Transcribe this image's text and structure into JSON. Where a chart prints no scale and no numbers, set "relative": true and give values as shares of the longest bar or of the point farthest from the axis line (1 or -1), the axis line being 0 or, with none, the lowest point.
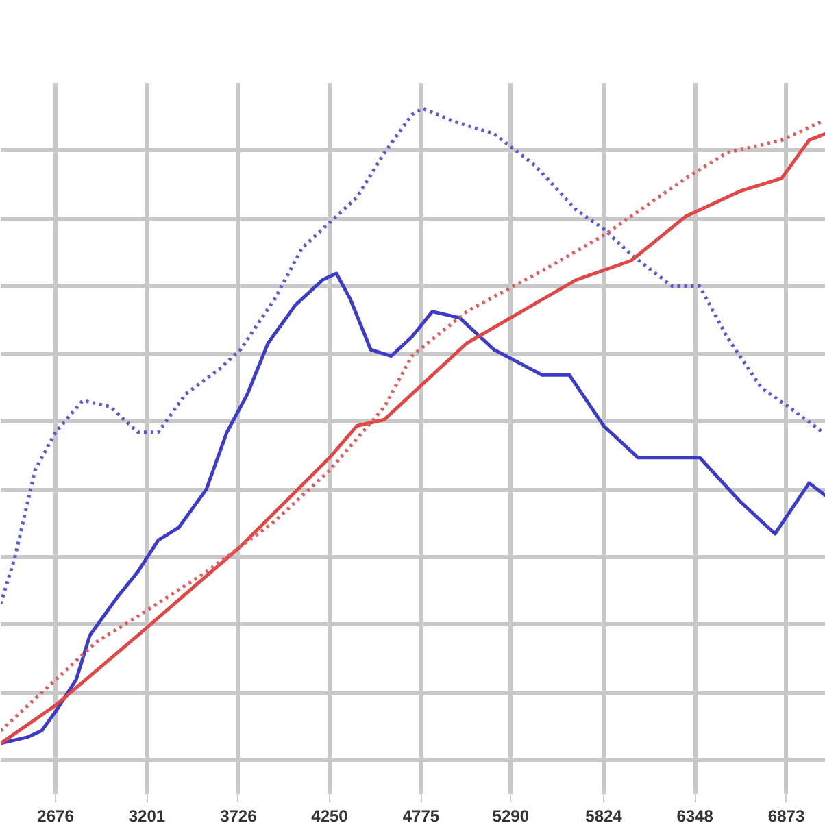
{
  "chart_data": {
    "type": "line",
    "relative": true,
    "grid": true,
    "xlim": [
      2361,
      7099
    ],
    "xticks": [
      2676,
      3201,
      3726,
      4250,
      4775,
      5290,
      5824,
      6348,
      6873
    ],
    "series": [
      {
        "color": "#5a5ad0",
        "line_style": "dotted",
        "x": [
          2361,
          2440,
          2558,
          2676,
          2833,
          2991,
          3148,
          3266,
          3423,
          3620,
          3738,
          3935,
          4092,
          4250,
          4407,
          4565,
          4722,
          4785,
          4958,
          5194,
          5430,
          5666,
          5824,
          5981,
          6217,
          6375,
          6532,
          6729,
          6886,
          7083
        ],
        "values": [
          0.22,
          0.29,
          0.43,
          0.49,
          0.54,
          0.53,
          0.49,
          0.49,
          0.55,
          0.59,
          0.62,
          0.7,
          0.78,
          0.82,
          0.86,
          0.93,
          0.99,
          1.0,
          0.98,
          0.96,
          0.91,
          0.84,
          0.81,
          0.77,
          0.72,
          0.72,
          0.64,
          0.56,
          0.53,
          0.49
        ]
      },
      {
        "color": "#3c3cc8",
        "line_style": "solid",
        "x": [
          2361,
          2518,
          2597,
          2676,
          2794,
          2873,
          3030,
          3148,
          3266,
          3384,
          3542,
          3660,
          3778,
          3896,
          4053,
          4210,
          4289,
          4368,
          4486,
          4604,
          4722,
          4840,
          4997,
          5194,
          5470,
          5627,
          5824,
          6021,
          6217,
          6375,
          6611,
          6808,
          7004,
          7099
        ],
        "values": [
          0.0,
          0.01,
          0.02,
          0.05,
          0.1,
          0.17,
          0.23,
          0.27,
          0.32,
          0.34,
          0.4,
          0.49,
          0.55,
          0.63,
          0.69,
          0.73,
          0.74,
          0.7,
          0.62,
          0.61,
          0.64,
          0.68,
          0.67,
          0.62,
          0.58,
          0.58,
          0.5,
          0.45,
          0.45,
          0.45,
          0.38,
          0.33,
          0.41,
          0.39
        ]
      },
      {
        "color": "#e04848",
        "line_style": "solid",
        "x": [
          2361,
          2676,
          3148,
          3738,
          4250,
          4407,
          4565,
          4722,
          5037,
          5352,
          5666,
          5981,
          6296,
          6611,
          6847,
          7004,
          7099
        ],
        "values": [
          0.0,
          0.06,
          0.17,
          0.31,
          0.45,
          0.5,
          0.51,
          0.55,
          0.63,
          0.68,
          0.73,
          0.76,
          0.83,
          0.87,
          0.89,
          0.95,
          0.96
        ]
      },
      {
        "color": "#d86060",
        "line_style": "dotted",
        "x": [
          2361,
          2676,
          2912,
          3148,
          3542,
          3935,
          4250,
          4565,
          4722,
          5037,
          5509,
          5824,
          6296,
          6532,
          6847,
          7083
        ],
        "values": [
          0.02,
          0.1,
          0.16,
          0.2,
          0.27,
          0.35,
          0.43,
          0.53,
          0.61,
          0.68,
          0.75,
          0.8,
          0.89,
          0.93,
          0.95,
          0.98
        ]
      }
    ]
  }
}
